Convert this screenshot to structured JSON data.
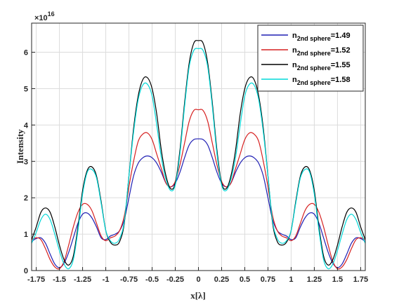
{
  "chart_data": {
    "type": "line",
    "xlabel": "x[λ]",
    "ylabel": "Intensity",
    "exponent": {
      "base": "×10",
      "power": "16"
    },
    "xlim": [
      -1.8,
      1.8
    ],
    "ylim": [
      0,
      6.8
    ],
    "grid": true,
    "legend_position": "top-right",
    "x_ticks": [
      -1.75,
      -1.5,
      -1.25,
      -1,
      -0.75,
      -0.5,
      -0.25,
      0,
      0.25,
      0.5,
      0.75,
      1,
      1.25,
      1.5,
      1.75
    ],
    "x_tick_labels": [
      "-1.75",
      "-1.5",
      "-1.25",
      "-1",
      "-0.75",
      "-0.5",
      "-0.25",
      "0",
      "0.25",
      "0.5",
      "0.75",
      "1",
      "1.25",
      "1.5",
      "1.75"
    ],
    "y_ticks": [
      0,
      1,
      2,
      3,
      4,
      5,
      6
    ],
    "y_tick_labels": [
      "0",
      "1",
      "2",
      "3",
      "4",
      "5",
      "6"
    ],
    "x": [
      -1.8,
      -1.75,
      -1.7,
      -1.65,
      -1.6,
      -1.55,
      -1.5,
      -1.45,
      -1.4,
      -1.35,
      -1.3,
      -1.25,
      -1.2,
      -1.15,
      -1.1,
      -1.05,
      -1,
      -0.95,
      -0.9,
      -0.85,
      -0.8,
      -0.75,
      -0.7,
      -0.65,
      -0.6,
      -0.55,
      -0.5,
      -0.45,
      -0.4,
      -0.35,
      -0.3,
      -0.25,
      -0.2,
      -0.15,
      -0.1,
      -0.05,
      0,
      0.05,
      0.1,
      0.15,
      0.2,
      0.25,
      0.3,
      0.35,
      0.4,
      0.45,
      0.5,
      0.55,
      0.6,
      0.65,
      0.7,
      0.75,
      0.8,
      0.85,
      0.9,
      0.95,
      1,
      1.05,
      1.1,
      1.15,
      1.2,
      1.25,
      1.3,
      1.35,
      1.4,
      1.45,
      1.5,
      1.55,
      1.6,
      1.65,
      1.7,
      1.75,
      1.8
    ],
    "series": [
      {
        "name_main": "n",
        "name_sub": "2nd sphere",
        "name_value": "=1.49",
        "color": "#1f1fb4",
        "values": [
          0.8,
          0.88,
          0.9,
          0.75,
          0.45,
          0.18,
          0.08,
          0.2,
          0.5,
          0.9,
          1.3,
          1.55,
          1.58,
          1.45,
          1.2,
          0.9,
          0.85,
          0.95,
          1.0,
          1.1,
          1.4,
          2.0,
          2.6,
          2.95,
          3.1,
          3.15,
          3.1,
          2.95,
          2.7,
          2.4,
          2.3,
          2.4,
          2.7,
          3.1,
          3.45,
          3.6,
          3.62,
          3.6,
          3.45,
          3.1,
          2.7,
          2.4,
          2.3,
          2.4,
          2.7,
          2.95,
          3.1,
          3.15,
          3.1,
          2.95,
          2.6,
          2.0,
          1.4,
          1.1,
          1.0,
          0.95,
          0.85,
          0.9,
          1.2,
          1.45,
          1.58,
          1.55,
          1.3,
          0.9,
          0.5,
          0.2,
          0.08,
          0.18,
          0.45,
          0.75,
          0.9,
          0.88,
          0.8
        ]
      },
      {
        "name_main": "n",
        "name_sub": "2nd sphere",
        "name_value": "=1.52",
        "color": "#d62020",
        "values": [
          0.85,
          0.9,
          0.85,
          0.6,
          0.3,
          0.1,
          0.05,
          0.25,
          0.7,
          1.2,
          1.6,
          1.82,
          1.82,
          1.65,
          1.3,
          0.95,
          0.82,
          0.9,
          0.95,
          1.1,
          1.5,
          2.3,
          3.0,
          3.55,
          3.75,
          3.78,
          3.6,
          3.2,
          2.8,
          2.4,
          2.3,
          2.45,
          2.9,
          3.5,
          4.1,
          4.4,
          4.42,
          4.4,
          4.1,
          3.5,
          2.9,
          2.45,
          2.3,
          2.4,
          2.8,
          3.2,
          3.6,
          3.78,
          3.75,
          3.55,
          3.0,
          2.3,
          1.5,
          1.1,
          0.95,
          0.9,
          0.82,
          0.95,
          1.3,
          1.65,
          1.82,
          1.82,
          1.6,
          1.2,
          0.7,
          0.25,
          0.05,
          0.1,
          0.3,
          0.6,
          0.85,
          0.9,
          0.85
        ]
      },
      {
        "name_main": "n",
        "name_sub": "2nd sphere",
        "name_value": "=1.55",
        "color": "#000000",
        "values": [
          0.85,
          1.2,
          1.6,
          1.72,
          1.6,
          1.2,
          0.7,
          0.3,
          0.15,
          0.4,
          1.2,
          2.2,
          2.75,
          2.85,
          2.6,
          1.9,
          1.1,
          0.78,
          0.7,
          0.8,
          1.3,
          2.6,
          3.9,
          4.8,
          5.25,
          5.3,
          5.0,
          4.3,
          3.3,
          2.6,
          2.25,
          2.4,
          3.3,
          4.6,
          5.7,
          6.25,
          6.32,
          6.25,
          5.7,
          4.6,
          3.3,
          2.4,
          2.25,
          2.6,
          3.3,
          4.3,
          5.0,
          5.3,
          5.25,
          4.8,
          3.9,
          2.6,
          1.3,
          0.8,
          0.7,
          0.78,
          1.1,
          1.9,
          2.6,
          2.85,
          2.75,
          2.2,
          1.2,
          0.4,
          0.15,
          0.3,
          0.7,
          1.2,
          1.6,
          1.72,
          1.6,
          1.2,
          0.85
        ]
      },
      {
        "name_main": "n",
        "name_sub": "2nd sphere",
        "name_value": "=1.58",
        "color": "#00d8d8",
        "values": [
          0.75,
          1.05,
          1.4,
          1.55,
          1.4,
          1.0,
          0.55,
          0.18,
          0.05,
          0.3,
          1.1,
          2.1,
          2.7,
          2.78,
          2.55,
          1.85,
          1.1,
          0.82,
          0.75,
          0.88,
          1.35,
          2.6,
          3.8,
          4.7,
          5.1,
          5.12,
          4.8,
          4.0,
          3.1,
          2.5,
          2.2,
          2.35,
          3.2,
          4.5,
          5.6,
          6.05,
          6.1,
          6.05,
          5.6,
          4.5,
          3.2,
          2.35,
          2.2,
          2.5,
          3.1,
          4.0,
          4.8,
          5.12,
          5.1,
          4.7,
          3.8,
          2.6,
          1.35,
          0.88,
          0.75,
          0.82,
          1.1,
          1.85,
          2.55,
          2.78,
          2.7,
          2.1,
          1.1,
          0.3,
          0.05,
          0.18,
          0.55,
          1.0,
          1.4,
          1.55,
          1.4,
          1.05,
          0.75
        ]
      }
    ]
  }
}
